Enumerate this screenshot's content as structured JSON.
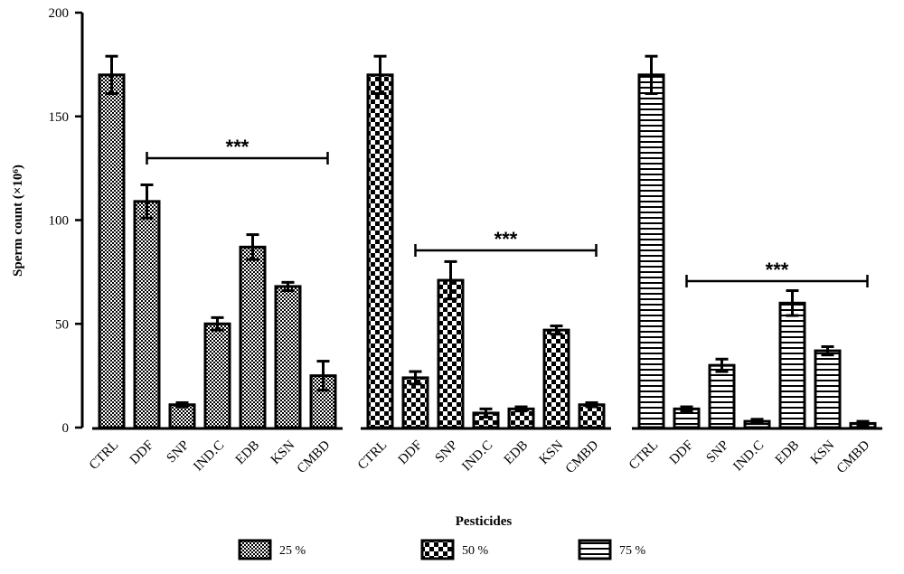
{
  "chart_data": {
    "type": "bar",
    "ylabel": "Sperm count (×10⁶)",
    "xlabel": "Pesticides",
    "ylim": [
      0,
      200
    ],
    "yticks": [
      0,
      50,
      100,
      150,
      200
    ],
    "grid": false,
    "legend_position": "bottom",
    "groups": [
      {
        "name": "25 %",
        "pattern": "checker-fine",
        "categories": [
          "CTRL",
          "DDF",
          "SNP",
          "IND.C",
          "EDB",
          "KSN",
          "CMBD"
        ],
        "values": [
          170,
          109,
          11,
          50,
          87,
          68,
          25
        ],
        "errors": [
          9,
          8,
          1,
          3,
          6,
          2,
          7
        ],
        "significance": "***"
      },
      {
        "name": "50 %",
        "pattern": "checker-coarse",
        "categories": [
          "CTRL",
          "DDF",
          "SNP",
          "IND.C",
          "EDB",
          "KSN",
          "CMBD"
        ],
        "values": [
          170,
          24,
          71,
          7,
          9,
          47,
          11
        ],
        "errors": [
          9,
          3,
          9,
          2,
          1,
          2,
          1
        ],
        "significance": "***"
      },
      {
        "name": "75 %",
        "pattern": "horizontal-lines",
        "categories": [
          "CTRL",
          "DDF",
          "SNP",
          "IND.C",
          "EDB",
          "KSN",
          "CMBD"
        ],
        "values": [
          170,
          9,
          30,
          3,
          60,
          37,
          2
        ],
        "errors": [
          9,
          1,
          3,
          1,
          6,
          2,
          1
        ],
        "significance": "***"
      }
    ]
  }
}
